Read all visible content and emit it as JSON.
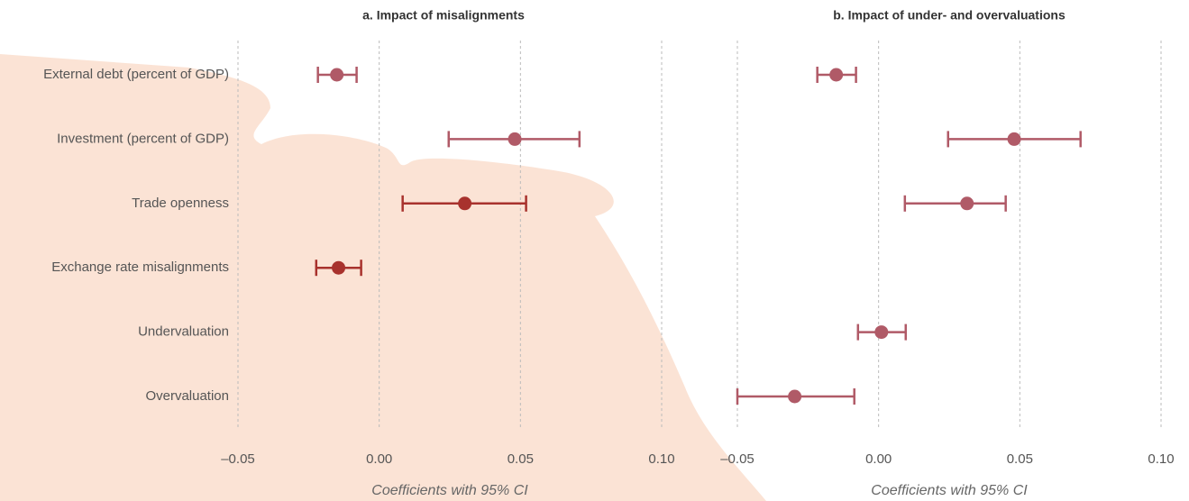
{
  "chart_data": [
    {
      "type": "errorbar",
      "title": "a. Impact of misalignments",
      "categories": [
        "External debt (percent of GDP)",
        "Investment (percent of GDP)",
        "Trade openness",
        "Exchange rate misalignments",
        "Undervaluation",
        "Overvaluation"
      ],
      "values": [
        -0.015,
        0.048,
        0.0303,
        -0.0144,
        null,
        null
      ],
      "lower": [
        -0.0217,
        0.0246,
        0.0083,
        -0.0223,
        null,
        null
      ],
      "upper": [
        -0.008,
        0.0709,
        0.052,
        -0.0064,
        null,
        null
      ],
      "colors": [
        "#b05a67",
        "#b05a67",
        "#a8322d",
        "#a8322d",
        null,
        null
      ],
      "xlim": [
        -0.05,
        0.1
      ],
      "xticks": [
        {
          "value": -0.05,
          "label": "–0.05"
        },
        {
          "value": 0,
          "label": "0.00"
        },
        0.05,
        {
          "value": 0.1,
          "label": "0.10"
        }
      ],
      "xlabel": "Coefficients with 95% CI",
      "grid": true
    },
    {
      "type": "errorbar",
      "title": "b. Impact of under- and overvaluations",
      "values": [
        -0.015,
        0.048,
        0.0313,
        null,
        0.001,
        -0.0297
      ],
      "lower": [
        -0.0217,
        0.0246,
        0.0093,
        null,
        -0.0073,
        -0.05
      ],
      "upper": [
        -0.008,
        0.0715,
        0.045,
        null,
        0.0096,
        -0.0086
      ],
      "colors": [
        "#b05a67",
        "#b05a67",
        "#b05a67",
        null,
        "#b05a67",
        "#b05a67"
      ],
      "xlim": [
        -0.05,
        0.1
      ],
      "xticks": [
        {
          "value": -0.05,
          "label": "–0.05"
        },
        {
          "value": 0,
          "label": "0.00"
        },
        0.05,
        {
          "value": 0.1,
          "label": "0.10"
        }
      ],
      "xlabel": "Coefficients with 95% CI",
      "grid": true
    }
  ]
}
